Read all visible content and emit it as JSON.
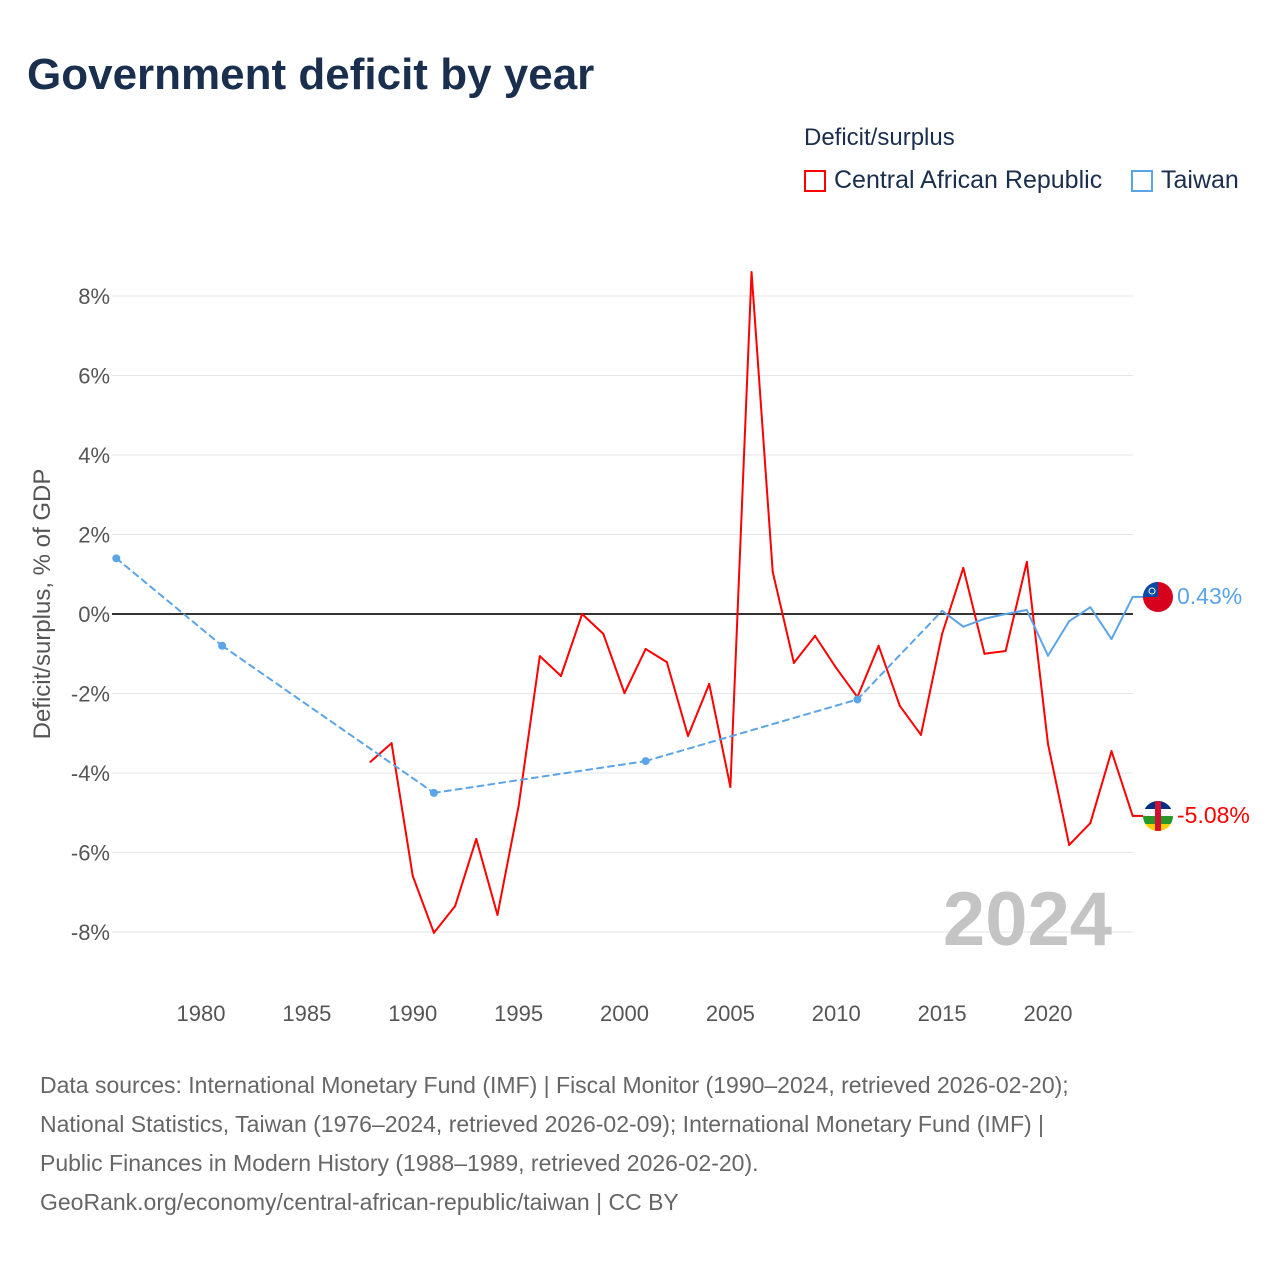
{
  "title": "Government deficit by year",
  "legend": {
    "title": "Deficit/surplus",
    "items": [
      {
        "label": "Central African Republic",
        "color": "#ff0000"
      },
      {
        "label": "Taiwan",
        "color": "#5ba4e8"
      }
    ]
  },
  "year_label": "2024",
  "end_labels": {
    "taiwan": "0.43%",
    "car": "-5.08%"
  },
  "source": [
    "Data sources: International Monetary Fund (IMF) | Fiscal Monitor (1990–2024, retrieved 2026-02-20);",
    "National Statistics, Taiwan (1976–2024, retrieved 2026-02-09); International Monetary Fund (IMF) |",
    "Public Finances in Modern History (1988–1989, retrieved 2026-02-20).",
    "GeoRank.org/economy/central-african-republic/taiwan | CC BY"
  ],
  "chart_data": {
    "type": "line",
    "ylabel": "Deficit/surplus, % of GDP",
    "xlim": [
      1976,
      2024
    ],
    "ylim": [
      -9,
      9
    ],
    "xticks": [
      1980,
      1985,
      1990,
      1995,
      2000,
      2005,
      2010,
      2015,
      2020
    ],
    "yticks": [
      -8,
      -6,
      -4,
      -2,
      0,
      2,
      4,
      6,
      8
    ],
    "ytick_labels": [
      "-8%",
      "-6%",
      "-4%",
      "-2%",
      "0%",
      "2%",
      "4%",
      "6%",
      "8%"
    ],
    "series": [
      {
        "name": "Central African Republic",
        "color": "#ff0000",
        "x": [
          1988,
          1989,
          1990,
          1991,
          1992,
          1993,
          1994,
          1995,
          1996,
          1997,
          1998,
          1999,
          2000,
          2001,
          2002,
          2003,
          2004,
          2005,
          2006,
          2007,
          2008,
          2009,
          2010,
          2011,
          2012,
          2013,
          2014,
          2015,
          2016,
          2017,
          2018,
          2019,
          2020,
          2021,
          2022,
          2023,
          2024
        ],
        "y": [
          -3.72,
          -3.25,
          -6.59,
          -8.02,
          -7.35,
          -5.66,
          -7.57,
          -4.83,
          -1.06,
          -1.56,
          0.0,
          -0.5,
          -1.99,
          -0.88,
          -1.21,
          -3.07,
          -1.76,
          -4.35,
          8.6,
          1.06,
          -1.23,
          -0.55,
          -1.36,
          -2.09,
          -0.8,
          -2.31,
          -3.04,
          -0.5,
          1.16,
          -1.0,
          -0.93,
          1.31,
          -3.27,
          -5.81,
          -5.26,
          -3.45,
          -5.08
        ]
      },
      {
        "name": "Taiwan",
        "color": "#5ba4e8",
        "x": [
          1976,
          1981,
          1991,
          2001,
          2011,
          2015,
          2016,
          2017,
          2018,
          2019,
          2020,
          2021,
          2022,
          2023,
          2024
        ],
        "y": [
          1.4,
          -0.8,
          -4.5,
          -3.7,
          -2.15,
          0.08,
          -0.32,
          -0.12,
          0.0,
          0.1,
          -1.05,
          -0.18,
          0.17,
          -0.63,
          0.43
        ]
      }
    ]
  }
}
